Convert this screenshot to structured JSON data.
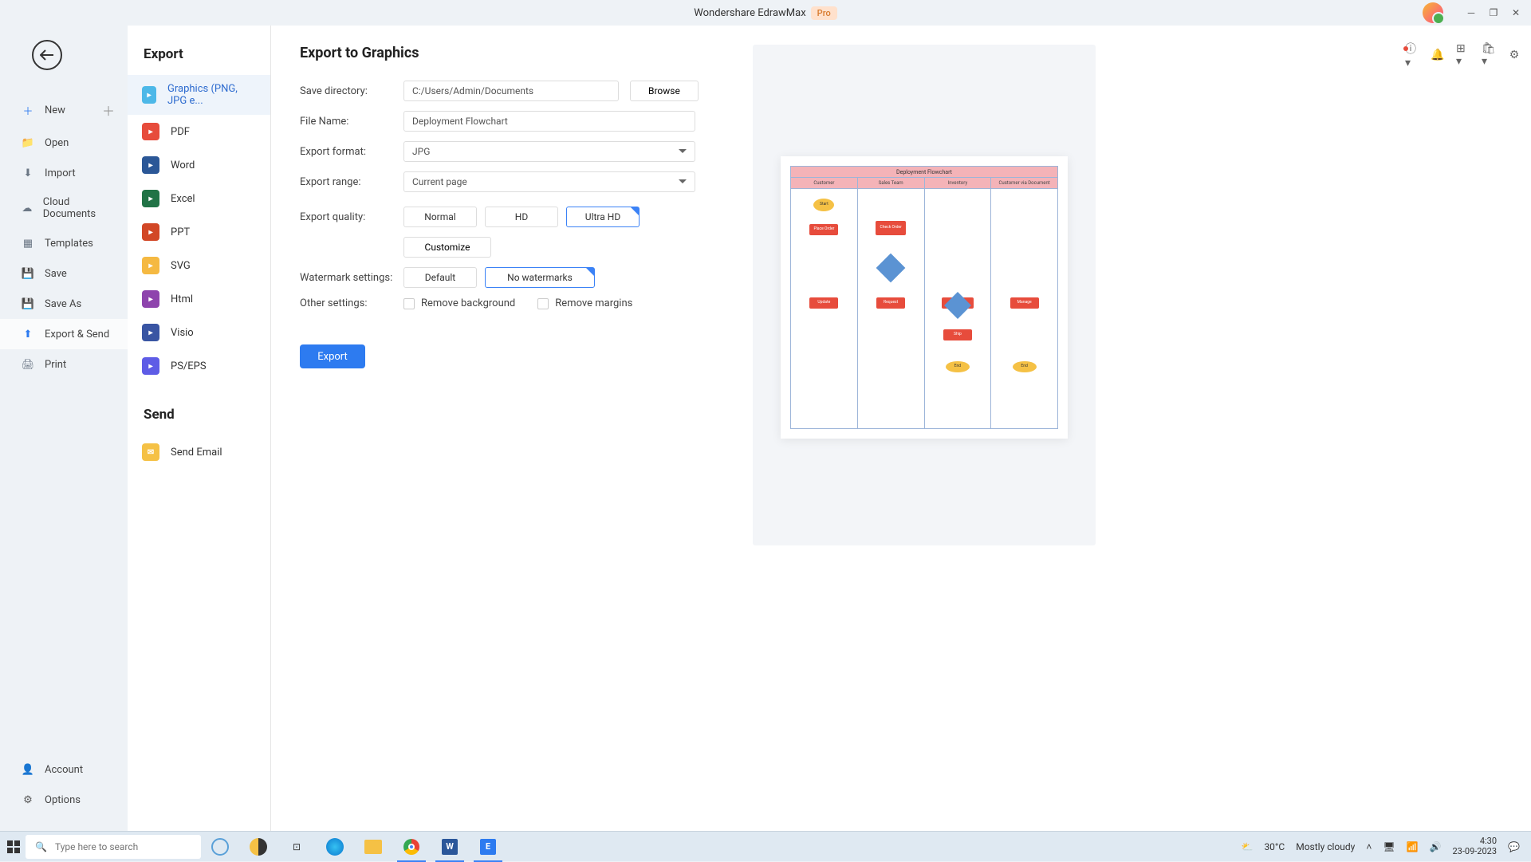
{
  "titlebar": {
    "title": "Wondershare EdrawMax",
    "badge": "Pro"
  },
  "nav": {
    "items": [
      {
        "label": "New",
        "icon_bg": "#2d7bf0",
        "has_plus": true
      },
      {
        "label": "Open",
        "icon_bg": "#6b7785"
      },
      {
        "label": "Import",
        "icon_bg": "#6b7785"
      },
      {
        "label": "Cloud Documents",
        "icon_bg": "#6b7785"
      },
      {
        "label": "Templates",
        "icon_bg": "#6b7785"
      },
      {
        "label": "Save",
        "icon_bg": "#6b7785"
      },
      {
        "label": "Save As",
        "icon_bg": "#6b7785"
      },
      {
        "label": "Export & Send",
        "icon_bg": "#2d7bf0",
        "active": true
      },
      {
        "label": "Print",
        "icon_bg": "#6b7785"
      }
    ],
    "bottom": [
      {
        "label": "Account"
      },
      {
        "label": "Options"
      }
    ]
  },
  "export_types": {
    "heading": "Export",
    "items": [
      {
        "label": "Graphics (PNG, JPG e...",
        "color": "#4db8e8",
        "active": true
      },
      {
        "label": "PDF",
        "color": "#e74c3c"
      },
      {
        "label": "Word",
        "color": "#2b5797"
      },
      {
        "label": "Excel",
        "color": "#217346"
      },
      {
        "label": "PPT",
        "color": "#d24726"
      },
      {
        "label": "SVG",
        "color": "#f5b942"
      },
      {
        "label": "Html",
        "color": "#8e44ad"
      },
      {
        "label": "Visio",
        "color": "#3955a3"
      },
      {
        "label": "PS/EPS",
        "color": "#5e5ce6"
      }
    ],
    "send_heading": "Send",
    "send_items": [
      {
        "label": "Send Email",
        "color": "#f5c145"
      }
    ]
  },
  "form": {
    "heading": "Export to Graphics",
    "save_dir_label": "Save directory:",
    "save_dir_value": "C:/Users/Admin/Documents",
    "browse": "Browse",
    "file_name_label": "File Name:",
    "file_name_value": "Deployment Flowchart",
    "format_label": "Export format:",
    "format_value": "JPG",
    "range_label": "Export range:",
    "range_value": "Current page",
    "quality_label": "Export quality:",
    "quality_options": [
      "Normal",
      "HD",
      "Ultra HD"
    ],
    "quality_selected": 2,
    "customize": "Customize",
    "watermark_label": "Watermark settings:",
    "watermark_options": [
      "Default",
      "No watermarks"
    ],
    "watermark_selected": 1,
    "other_label": "Other settings:",
    "other_options": [
      "Remove background",
      "Remove margins"
    ],
    "export_btn": "Export"
  },
  "preview": {
    "chart_title": "Deployment Flowchart",
    "lanes": [
      "Customer",
      "Sales Team",
      "Inventory",
      "Customer via Document"
    ],
    "node_rect_color": "#e74c3c",
    "node_oval_color": "#f5c145",
    "node_diamond_color": "#5b93d3",
    "lane_header_bg": "#f4b3b8",
    "border_color": "#9db5d9"
  },
  "taskbar": {
    "search_placeholder": "Type here to search",
    "weather_temp": "30°C",
    "weather_desc": "Mostly cloudy",
    "time": "4:30",
    "date": "23-09-2023"
  }
}
